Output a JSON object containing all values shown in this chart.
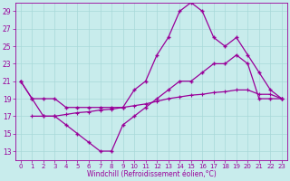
{
  "xlabel": "Windchill (Refroidissement éolien,°C)",
  "bg_color": "#c8ecec",
  "grid_color": "#a8d8d8",
  "line_color": "#990099",
  "xlim_min": -0.5,
  "xlim_max": 23.5,
  "ylim_min": 12,
  "ylim_max": 30,
  "xticks": [
    0,
    1,
    2,
    3,
    4,
    5,
    6,
    7,
    8,
    9,
    10,
    11,
    12,
    13,
    14,
    15,
    16,
    17,
    18,
    19,
    20,
    21,
    22,
    23
  ],
  "yticks": [
    13,
    15,
    17,
    19,
    21,
    23,
    25,
    27,
    29
  ],
  "line1_x": [
    0,
    1,
    2,
    3,
    4,
    5,
    6,
    7,
    8,
    9,
    10,
    11,
    12,
    13,
    14,
    15,
    16,
    17,
    18,
    19,
    20,
    21,
    22,
    23
  ],
  "line1_y": [
    21,
    19,
    17,
    17,
    16,
    15,
    14,
    13,
    13,
    16,
    17,
    18,
    19,
    20,
    21,
    21,
    22,
    23,
    23,
    24,
    23,
    19,
    19,
    19
  ],
  "line2_x": [
    1,
    2,
    3,
    4,
    5,
    6,
    7,
    8,
    9,
    10,
    11,
    12,
    13,
    14,
    15,
    16,
    17,
    18,
    19,
    20,
    21,
    22,
    23
  ],
  "line2_y": [
    17,
    17,
    17,
    17.2,
    17.4,
    17.5,
    17.7,
    17.8,
    18,
    18.2,
    18.4,
    18.7,
    19,
    19.2,
    19.4,
    19.5,
    19.7,
    19.8,
    20,
    20,
    19.5,
    19.5,
    19
  ],
  "line3_x": [
    0,
    1,
    2,
    3,
    4,
    5,
    6,
    7,
    8,
    9,
    10,
    11,
    12,
    13,
    14,
    15,
    16,
    17,
    18,
    19,
    20,
    21,
    22,
    23
  ],
  "line3_y": [
    21,
    19,
    19,
    19,
    18,
    18,
    18,
    18,
    18,
    18,
    20,
    21,
    24,
    26,
    29,
    30,
    29,
    26,
    25,
    26,
    24,
    22,
    20,
    19
  ]
}
